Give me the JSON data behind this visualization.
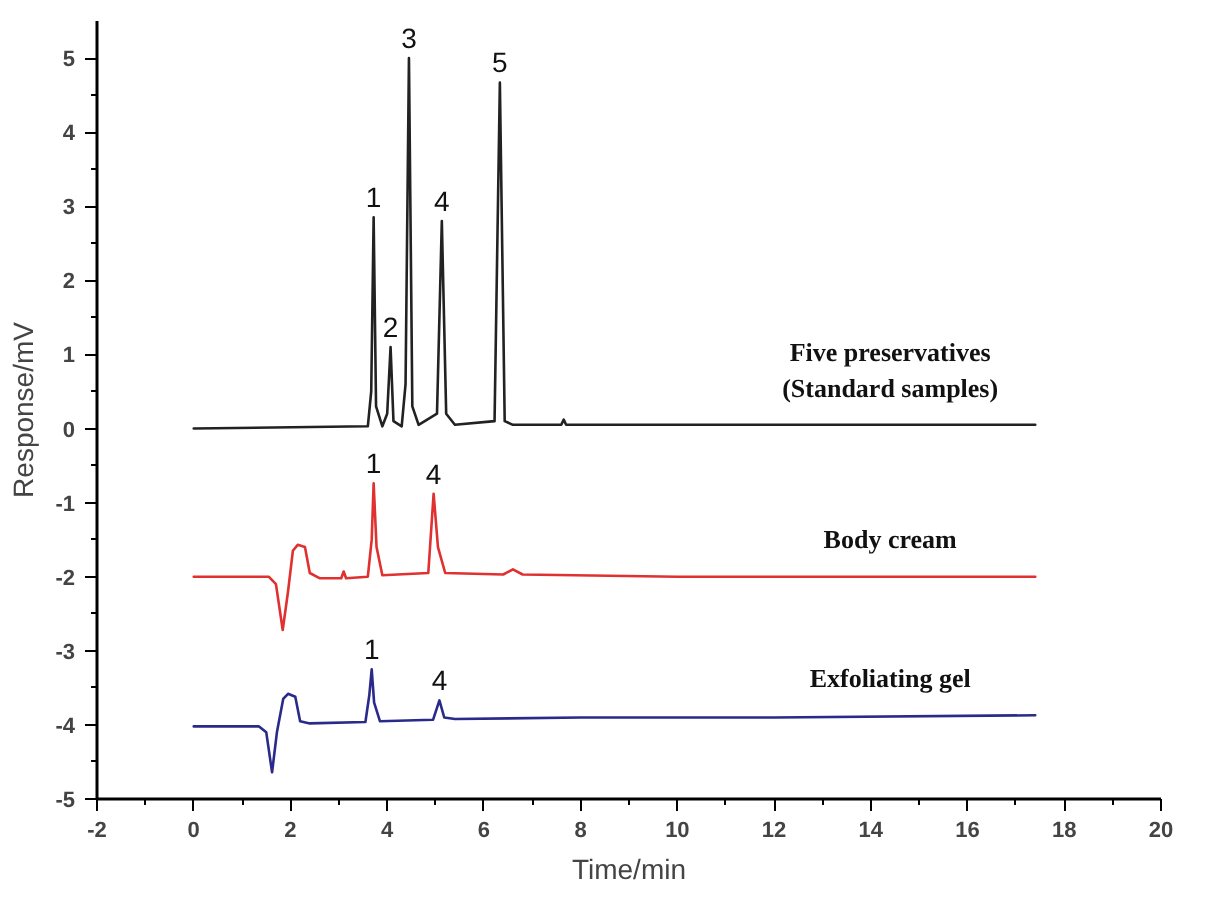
{
  "chart_data": {
    "type": "line",
    "xlabel": "Time/min",
    "ylabel": "Response/mV",
    "xlim": [
      -2,
      20
    ],
    "ylim": [
      -5,
      5.5
    ],
    "xticks": [
      -2,
      0,
      2,
      4,
      6,
      8,
      10,
      12,
      14,
      16,
      18,
      20
    ],
    "yticks": [
      -5,
      -4,
      -3,
      -2,
      -1,
      0,
      1,
      2,
      3,
      4,
      5
    ],
    "grid": false,
    "marker": "none",
    "line_style": "solid",
    "series": [
      {
        "name": "Five preservatives\n(Standard samples)",
        "color": "#222222",
        "x": [
          0,
          3.6,
          3.67,
          3.72,
          3.77,
          3.9,
          4.0,
          4.07,
          4.13,
          4.3,
          4.38,
          4.45,
          4.52,
          4.65,
          5.03,
          5.13,
          5.22,
          5.4,
          6.22,
          6.33,
          6.43,
          6.6,
          7.6,
          7.65,
          7.7,
          10,
          17.4
        ],
        "values": [
          0,
          0.03,
          0.5,
          2.85,
          0.3,
          0.03,
          0.2,
          1.1,
          0.1,
          0.03,
          0.6,
          5.0,
          0.3,
          0.05,
          0.2,
          2.8,
          0.2,
          0.05,
          0.1,
          4.67,
          0.1,
          0.05,
          0.05,
          0.12,
          0.05,
          0.05,
          0.05
        ]
      },
      {
        "name": "Body cream",
        "color": "#e03030",
        "x": [
          0,
          1.55,
          1.7,
          1.84,
          1.95,
          2.05,
          2.15,
          2.3,
          2.4,
          2.6,
          3.05,
          3.1,
          3.15,
          3.6,
          3.68,
          3.72,
          3.78,
          3.9,
          4.85,
          4.96,
          5.05,
          5.2,
          6.4,
          6.6,
          6.8,
          10,
          17.4
        ],
        "values": [
          -2.0,
          -2.0,
          -2.1,
          -2.72,
          -2.2,
          -1.65,
          -1.57,
          -1.6,
          -1.95,
          -2.02,
          -2.02,
          -1.93,
          -2.02,
          -2.0,
          -1.5,
          -0.74,
          -1.6,
          -1.98,
          -1.95,
          -0.88,
          -1.6,
          -1.95,
          -1.97,
          -1.9,
          -1.97,
          -2.0,
          -2.0
        ]
      },
      {
        "name": "Exfoliating gel",
        "color": "#2a2a8a",
        "x": [
          0,
          1.35,
          1.5,
          1.62,
          1.72,
          1.85,
          1.95,
          2.1,
          2.2,
          2.4,
          3.55,
          3.63,
          3.68,
          3.73,
          3.85,
          4.95,
          5.08,
          5.18,
          5.4,
          8,
          12,
          17.4
        ],
        "values": [
          -4.02,
          -4.02,
          -4.1,
          -4.64,
          -4.1,
          -3.65,
          -3.58,
          -3.62,
          -3.95,
          -3.98,
          -3.96,
          -3.6,
          -3.25,
          -3.7,
          -3.95,
          -3.93,
          -3.67,
          -3.9,
          -3.92,
          -3.9,
          -3.9,
          -3.87
        ]
      }
    ],
    "annotations": [
      {
        "text": "1",
        "x": 3.72,
        "y": 2.85
      },
      {
        "text": "2",
        "x": 4.07,
        "y": 1.1
      },
      {
        "text": "3",
        "x": 4.45,
        "y": 5.0
      },
      {
        "text": "4",
        "x": 5.13,
        "y": 2.8
      },
      {
        "text": "5",
        "x": 6.33,
        "y": 4.67
      },
      {
        "text": "1",
        "x": 3.72,
        "y": -0.74
      },
      {
        "text": "4",
        "x": 4.96,
        "y": -0.88
      },
      {
        "text": "1",
        "x": 3.68,
        "y": -3.25
      },
      {
        "text": "4",
        "x": 5.08,
        "y": -3.67
      }
    ]
  }
}
